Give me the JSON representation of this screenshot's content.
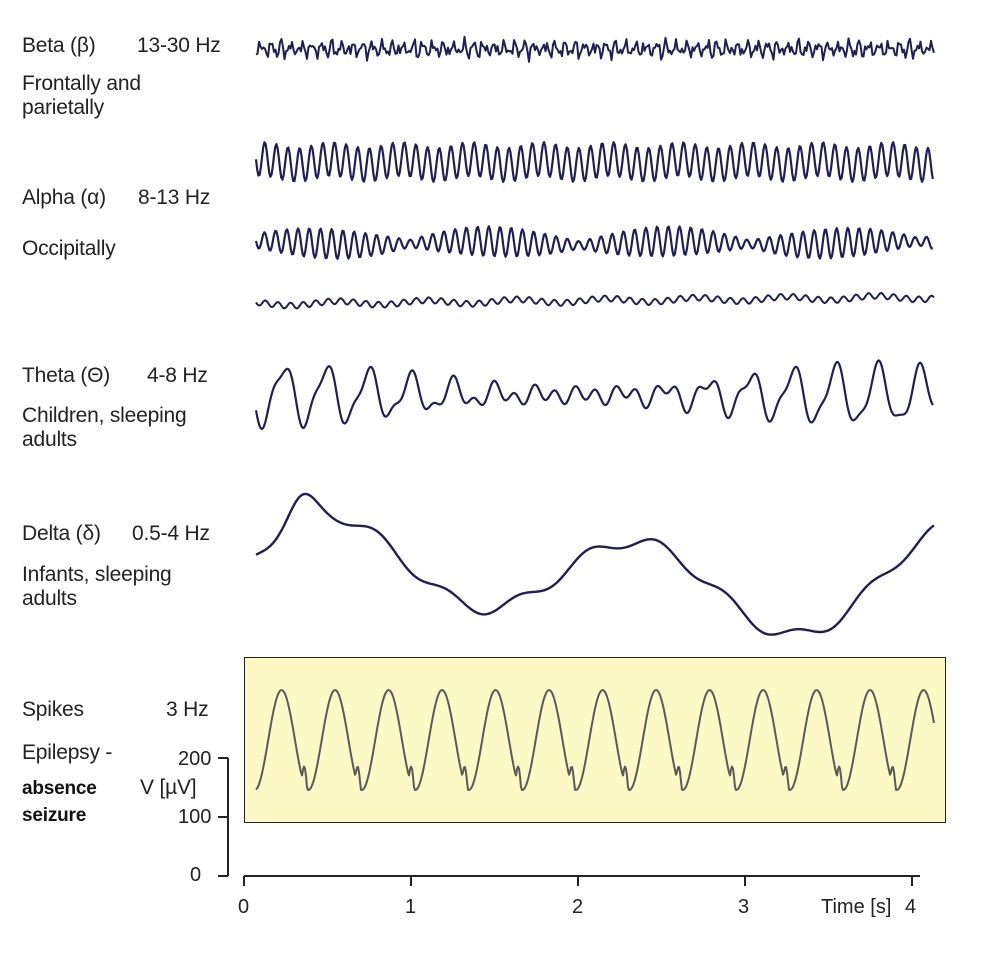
{
  "bands": {
    "beta": {
      "name": "Beta (β)",
      "freq": "13-30 Hz",
      "location": "Frontally and parietally"
    },
    "alpha": {
      "name": "Alpha (α)",
      "freq": "8-13 Hz",
      "location": "Occipitally"
    },
    "theta": {
      "name": "Theta (Θ)",
      "freq": "4-8 Hz",
      "location": "Children, sleeping adults"
    },
    "delta": {
      "name": "Delta (δ)",
      "freq": "0.5-4 Hz",
      "location": "Infants, sleeping adults"
    },
    "spikes": {
      "name": "Spikes",
      "freq": "3 Hz",
      "location": "Epilepsy -",
      "condition_line1": "absence",
      "condition_line2": "seizure"
    }
  },
  "axes": {
    "y_title": "V [µV]",
    "y_ticks": [
      "200",
      "100",
      "0"
    ],
    "x_title": "Time [s]",
    "x_ticks": [
      "0",
      "1",
      "2",
      "3",
      "4"
    ]
  },
  "colors": {
    "trace": "#1f1f55",
    "spike_trace": "#5a5a5a",
    "spike_bg": "#fcf9c5"
  }
}
